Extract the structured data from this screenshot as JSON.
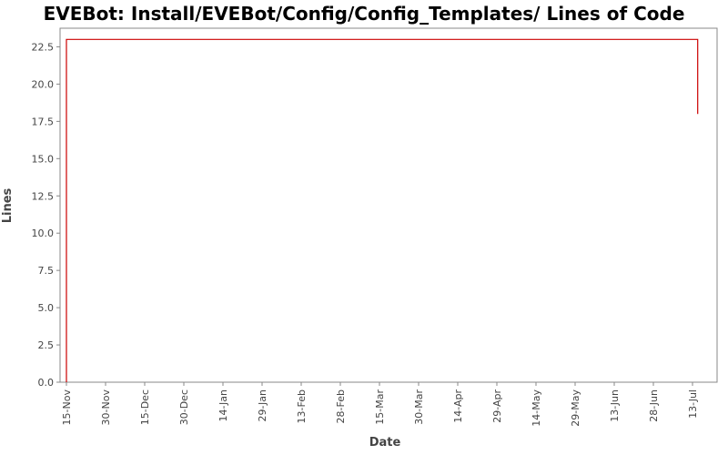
{
  "chart_data": {
    "type": "line",
    "title": "EVEBot: Install/EVEBot/Config/Config_Templates/ Lines of Code",
    "xlabel": "Date",
    "ylabel": "Lines",
    "ylim": [
      0,
      23.75
    ],
    "y_ticks": [
      0.0,
      2.5,
      5.0,
      7.5,
      10.0,
      12.5,
      15.0,
      17.5,
      20.0,
      22.5
    ],
    "y_tick_labels": [
      "0.0",
      "2.5",
      "5.0",
      "7.5",
      "10.0",
      "12.5",
      "15.0",
      "17.5",
      "20.0",
      "22.5"
    ],
    "x_tick_labels": [
      "15-Nov",
      "30-Nov",
      "15-Dec",
      "30-Dec",
      "14-Jan",
      "29-Jan",
      "13-Feb",
      "28-Feb",
      "15-Mar",
      "30-Mar",
      "14-Apr",
      "29-Apr",
      "14-May",
      "29-May",
      "13-Jun",
      "28-Jun",
      "13-Jul"
    ],
    "x_tick_spacing_days": 15,
    "grid": false,
    "series_color": "#cc0000",
    "series": [
      {
        "points": [
          {
            "x": "15-Nov",
            "y": 0
          },
          {
            "x": "15-Nov",
            "y": 23
          },
          {
            "x": "15-Jul",
            "y": 23
          },
          {
            "x": "15-Jul",
            "y": 18
          }
        ]
      }
    ]
  }
}
